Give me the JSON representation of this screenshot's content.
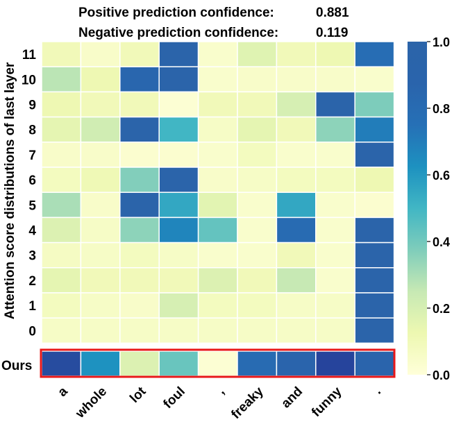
{
  "header": {
    "positive_label": "Positive prediction confidence:",
    "positive_value": "0.881",
    "negative_label": "Negative prediction confidence:",
    "negative_value": "0.119"
  },
  "chart_data": {
    "type": "heatmap",
    "title": "",
    "ylabel": "Attention score distributions of last layer",
    "xlabel": "",
    "x_categories": [
      "a",
      "whole",
      "lot",
      "foul",
      ",",
      "freaky",
      "and",
      "funny",
      "."
    ],
    "y_categories": [
      "11",
      "10",
      "9",
      "8",
      "7",
      "6",
      "5",
      "4",
      "3",
      "2",
      "1",
      "0"
    ],
    "values": [
      [
        0.1,
        0.05,
        0.1,
        0.97,
        0.04,
        0.17,
        0.1,
        0.12,
        0.78
      ],
      [
        0.27,
        0.12,
        0.85,
        0.97,
        0.04,
        0.05,
        0.05,
        0.05,
        0.04
      ],
      [
        0.12,
        0.1,
        0.1,
        0.02,
        0.1,
        0.1,
        0.2,
        0.97,
        0.38
      ],
      [
        0.15,
        0.22,
        0.97,
        0.5,
        0.06,
        0.15,
        0.1,
        0.35,
        0.7
      ],
      [
        0.05,
        0.05,
        0.03,
        0.03,
        0.04,
        0.08,
        0.04,
        0.04,
        0.97
      ],
      [
        0.08,
        0.11,
        0.37,
        0.97,
        0.05,
        0.06,
        0.08,
        0.08,
        0.12
      ],
      [
        0.3,
        0.05,
        0.97,
        0.55,
        0.16,
        0.04,
        0.55,
        0.04,
        0.03
      ],
      [
        0.18,
        0.06,
        0.35,
        0.67,
        0.43,
        0.04,
        0.8,
        0.04,
        0.97
      ],
      [
        0.07,
        0.06,
        0.08,
        0.06,
        0.04,
        0.04,
        0.1,
        0.04,
        0.97
      ],
      [
        0.15,
        0.1,
        0.1,
        0.1,
        0.18,
        0.1,
        0.25,
        0.04,
        0.97
      ],
      [
        0.08,
        0.06,
        0.05,
        0.2,
        0.08,
        0.08,
        0.06,
        0.06,
        0.97
      ],
      [
        0.06,
        0.06,
        0.06,
        0.06,
        0.06,
        0.06,
        0.06,
        0.06,
        0.97
      ]
    ],
    "ours_label": "Ours",
    "ours_values": [
      1.15,
      0.62,
      0.18,
      0.42,
      0.02,
      0.8,
      0.88,
      1.2,
      0.88
    ],
    "colorbar": {
      "min": 0.0,
      "max": 1.0,
      "ticks": [
        "0.0",
        "0.2",
        "0.4",
        "0.6",
        "0.8",
        "1.0"
      ]
    },
    "colors": {
      "highlight_border": "#e8181a",
      "cell_border": "#ffffff"
    }
  }
}
